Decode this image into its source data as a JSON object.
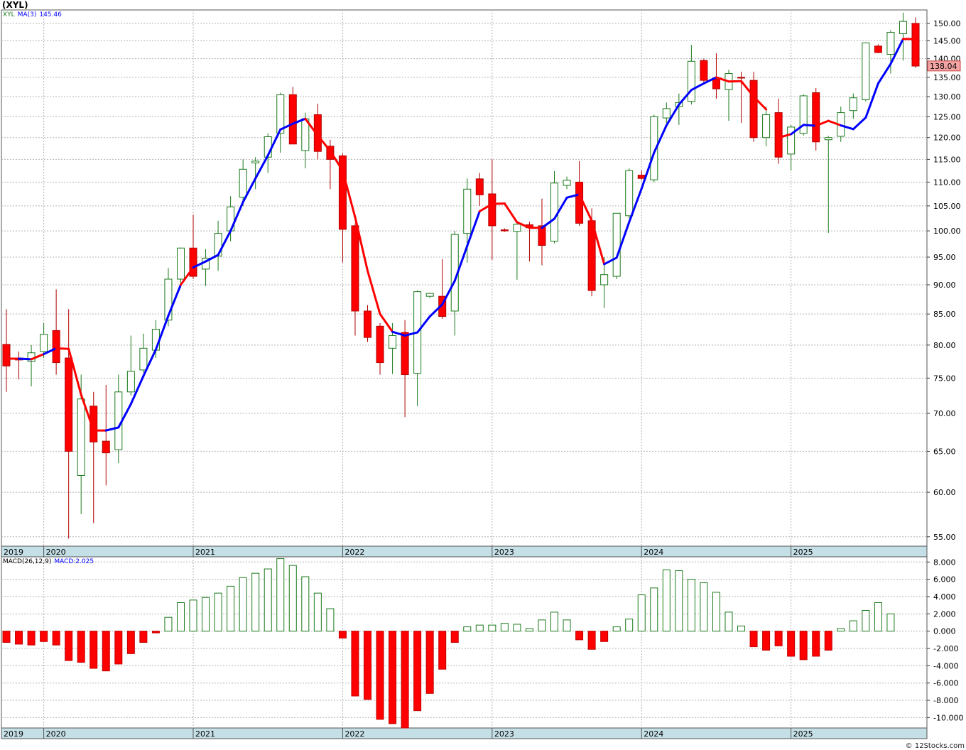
{
  "title": "(XYL)",
  "legend_main": {
    "sym": "XYL",
    "ma_label": "MA(3)",
    "ma_value": "145.46"
  },
  "legend_macd": {
    "label": "MACD(26,12,9)",
    "value": "MACD:2.025"
  },
  "last_price_label": "138.04",
  "credit": "© 12Stocks.com",
  "colors": {
    "up": "#1b7a1b",
    "down": "#ff0000",
    "ma": "#0000ff",
    "grid": "#b4b4b4",
    "date_band": "#c5dfe6"
  },
  "chart_data": {
    "type": "candlestick",
    "year_labels": [
      "2019",
      "2020",
      "2021",
      "2022",
      "2023",
      "2024",
      "2025"
    ],
    "price_ticks": [
      "150.00",
      "145.00",
      "140.00",
      "135.00",
      "130.00",
      "125.00",
      "120.00",
      "115.00",
      "110.00",
      "105.00",
      "100.00",
      "95.00",
      "90.00",
      "85.00",
      "80.00",
      "75.00",
      "70.00",
      "65.00",
      "60.00",
      "55.00"
    ],
    "macd_ticks": [
      "8.000",
      "6.000",
      "4.000",
      "2.000",
      "0.000",
      "-2.000",
      "-4.000",
      "-6.000",
      "-8.000",
      "-10.000"
    ],
    "candles": [
      {
        "o": 80.1,
        "h": 85.8,
        "l": 73.0,
        "c": 76.8
      },
      {
        "o": 78.0,
        "h": 79.0,
        "l": 74.8,
        "c": 77.7
      },
      {
        "o": 77.5,
        "h": 80.0,
        "l": 73.8,
        "c": 78.8
      },
      {
        "o": 79.0,
        "h": 83.5,
        "l": 78.0,
        "c": 81.7
      },
      {
        "o": 82.3,
        "h": 89.2,
        "l": 75.5,
        "c": 77.3
      },
      {
        "o": 78.0,
        "h": 85.8,
        "l": 54.8,
        "c": 65.0
      },
      {
        "o": 62.0,
        "h": 75.5,
        "l": 57.5,
        "c": 72.0
      },
      {
        "o": 71.0,
        "h": 73.0,
        "l": 56.5,
        "c": 66.2
      },
      {
        "o": 66.3,
        "h": 74.0,
        "l": 60.8,
        "c": 64.8
      },
      {
        "o": 65.2,
        "h": 75.5,
        "l": 63.5,
        "c": 73.0
      },
      {
        "o": 73.0,
        "h": 81.5,
        "l": 72.5,
        "c": 76.0
      },
      {
        "o": 76.2,
        "h": 81.8,
        "l": 75.8,
        "c": 79.5
      },
      {
        "o": 79.2,
        "h": 84.0,
        "l": 78.0,
        "c": 82.5
      },
      {
        "o": 84.0,
        "h": 93.0,
        "l": 83.0,
        "c": 91.0
      },
      {
        "o": 91.0,
        "h": 96.8,
        "l": 89.5,
        "c": 96.7
      },
      {
        "o": 96.7,
        "h": 103.2,
        "l": 91.0,
        "c": 91.5
      },
      {
        "o": 92.8,
        "h": 96.5,
        "l": 89.8,
        "c": 94.8
      },
      {
        "o": 95.2,
        "h": 102.0,
        "l": 92.5,
        "c": 99.5
      },
      {
        "o": 100.0,
        "h": 107.0,
        "l": 98.0,
        "c": 104.8
      },
      {
        "o": 106.8,
        "h": 115.0,
        "l": 105.0,
        "c": 112.8
      },
      {
        "o": 114.2,
        "h": 115.5,
        "l": 108.5,
        "c": 114.6
      },
      {
        "o": 115.5,
        "h": 121.0,
        "l": 112.0,
        "c": 120.2
      },
      {
        "o": 121.0,
        "h": 131.0,
        "l": 116.5,
        "c": 130.5
      },
      {
        "o": 130.5,
        "h": 132.5,
        "l": 119.0,
        "c": 118.5
      },
      {
        "o": 117.0,
        "h": 126.0,
        "l": 113.0,
        "c": 124.5
      },
      {
        "o": 125.5,
        "h": 128.2,
        "l": 115.0,
        "c": 116.8
      },
      {
        "o": 118.0,
        "h": 119.5,
        "l": 108.5,
        "c": 115.0
      },
      {
        "o": 115.8,
        "h": 116.3,
        "l": 94.0,
        "c": 100.3
      },
      {
        "o": 101.0,
        "h": 101.5,
        "l": 81.5,
        "c": 85.5
      },
      {
        "o": 85.5,
        "h": 86.5,
        "l": 80.5,
        "c": 81.2
      },
      {
        "o": 83.0,
        "h": 83.5,
        "l": 75.5,
        "c": 77.3
      },
      {
        "o": 79.5,
        "h": 83.5,
        "l": 75.6,
        "c": 81.5
      },
      {
        "o": 82.0,
        "h": 84.0,
        "l": 69.5,
        "c": 75.5
      },
      {
        "o": 75.7,
        "h": 89.0,
        "l": 71.0,
        "c": 88.8
      },
      {
        "o": 88.0,
        "h": 88.6,
        "l": 87.7,
        "c": 88.5
      },
      {
        "o": 88.0,
        "h": 94.6,
        "l": 84.2,
        "c": 84.6
      },
      {
        "o": 85.5,
        "h": 100.0,
        "l": 81.5,
        "c": 99.3
      },
      {
        "o": 99.5,
        "h": 110.8,
        "l": 94.0,
        "c": 108.5
      },
      {
        "o": 110.7,
        "h": 112.0,
        "l": 105.0,
        "c": 107.3
      },
      {
        "o": 107.5,
        "h": 115.0,
        "l": 94.5,
        "c": 101.0
      },
      {
        "o": 100.2,
        "h": 100.5,
        "l": 99.8,
        "c": 100.0
      },
      {
        "o": 99.9,
        "h": 101.5,
        "l": 90.9,
        "c": 101.3
      },
      {
        "o": 101.2,
        "h": 101.8,
        "l": 94.2,
        "c": 100.6
      },
      {
        "o": 101.0,
        "h": 106.5,
        "l": 93.5,
        "c": 97.2
      },
      {
        "o": 98.0,
        "h": 112.4,
        "l": 97.6,
        "c": 109.8
      },
      {
        "o": 109.3,
        "h": 111.2,
        "l": 108.5,
        "c": 110.4
      },
      {
        "o": 110.0,
        "h": 114.6,
        "l": 101.0,
        "c": 101.5
      },
      {
        "o": 102.0,
        "h": 104.5,
        "l": 88.0,
        "c": 89.0
      },
      {
        "o": 90.0,
        "h": 95.0,
        "l": 86.0,
        "c": 91.8
      },
      {
        "o": 91.5,
        "h": 103.5,
        "l": 91.0,
        "c": 103.5
      },
      {
        "o": 103.0,
        "h": 113.0,
        "l": 102.5,
        "c": 112.5
      },
      {
        "o": 111.5,
        "h": 112.5,
        "l": 110.5,
        "c": 110.8
      },
      {
        "o": 110.5,
        "h": 125.5,
        "l": 110.0,
        "c": 125.0
      },
      {
        "o": 124.7,
        "h": 128.5,
        "l": 123.5,
        "c": 127.0
      },
      {
        "o": 127.5,
        "h": 130.8,
        "l": 123.0,
        "c": 128.5
      },
      {
        "o": 128.8,
        "h": 143.8,
        "l": 128.0,
        "c": 139.3
      },
      {
        "o": 139.5,
        "h": 140.0,
        "l": 133.5,
        "c": 134.2
      },
      {
        "o": 134.5,
        "h": 141.5,
        "l": 129.5,
        "c": 132.0
      },
      {
        "o": 131.8,
        "h": 137.0,
        "l": 124.0,
        "c": 136.0
      },
      {
        "o": 135.0,
        "h": 136.5,
        "l": 123.5,
        "c": 134.8
      },
      {
        "o": 134.2,
        "h": 136.5,
        "l": 119.0,
        "c": 120.0
      },
      {
        "o": 120.0,
        "h": 127.5,
        "l": 118.0,
        "c": 125.5
      },
      {
        "o": 126.0,
        "h": 129.5,
        "l": 114.0,
        "c": 115.5
      },
      {
        "o": 116.2,
        "h": 123.0,
        "l": 112.5,
        "c": 122.5
      },
      {
        "o": 121.0,
        "h": 130.6,
        "l": 120.5,
        "c": 130.2
      },
      {
        "o": 131.0,
        "h": 132.2,
        "l": 117.0,
        "c": 119.0
      },
      {
        "o": 119.5,
        "h": 120.4,
        "l": 99.6,
        "c": 120.0
      },
      {
        "o": 120.3,
        "h": 127.5,
        "l": 119.0,
        "c": 126.0
      },
      {
        "o": 126.5,
        "h": 130.8,
        "l": 124.5,
        "c": 129.7
      },
      {
        "o": 129.2,
        "h": 144.5,
        "l": 128.8,
        "c": 144.4
      },
      {
        "o": 143.5,
        "h": 144.0,
        "l": 141.5,
        "c": 141.7
      },
      {
        "o": 141.2,
        "h": 148.0,
        "l": 136.0,
        "c": 147.4
      },
      {
        "o": 147.0,
        "h": 153.2,
        "l": 139.5,
        "c": 150.6
      },
      {
        "o": 150.0,
        "h": 151.8,
        "l": 137.5,
        "c": 138.0
      }
    ],
    "ma": [
      77.9,
      77.9,
      77.8,
      78.6,
      79.5,
      79.4,
      72.6,
      67.7,
      67.7,
      68.1,
      71.3,
      75.3,
      79.3,
      84.7,
      90.0,
      93.1,
      94.2,
      95.4,
      100.0,
      105.8,
      110.8,
      115.9,
      121.9,
      123.3,
      124.5,
      120.5,
      116.9,
      112.5,
      102.7,
      92.5,
      85.0,
      82.1,
      81.5,
      82.0,
      84.6,
      86.6,
      90.7,
      97.1,
      103.9,
      105.4,
      105.5,
      101.7,
      100.6,
      100.6,
      102.4,
      106.7,
      107.4,
      102.0,
      93.7,
      94.9,
      101.7,
      108.6,
      116.5,
      122.9,
      128.0,
      131.7,
      133.4,
      135.0,
      133.9,
      134.0,
      130.0,
      126.8,
      120.0,
      120.8,
      123.0,
      122.8,
      124.0,
      122.9,
      122.0,
      124.8,
      133.4,
      138.6,
      145.5,
      145.5
    ],
    "ma_color": [
      "#ff0000",
      "#0000ff",
      "#ff0000",
      "#0000ff",
      "#ff0000",
      "#ff0000",
      "#ff0000",
      "#ff0000",
      "#0000ff",
      "#0000ff",
      "#0000ff",
      "#0000ff",
      "#0000ff",
      "#0000ff",
      "#ff0000",
      "#0000ff",
      "#0000ff",
      "#0000ff",
      "#0000ff",
      "#0000ff",
      "#0000ff",
      "#0000ff",
      "#0000ff",
      "#0000ff",
      "#ff0000",
      "#ff0000",
      "#ff0000",
      "#ff0000",
      "#ff0000",
      "#ff0000",
      "#ff0000",
      "#0000ff",
      "#0000ff",
      "#0000ff",
      "#0000ff",
      "#0000ff",
      "#0000ff",
      "#0000ff",
      "#ff0000",
      "#ff0000",
      "#ff0000",
      "#ff0000",
      "#ff0000",
      "#0000ff",
      "#0000ff",
      "#0000ff",
      "#ff0000",
      "#ff0000",
      "#0000ff",
      "#0000ff",
      "#0000ff",
      "#0000ff",
      "#0000ff",
      "#0000ff",
      "#0000ff",
      "#0000ff",
      "#0000ff",
      "#ff0000",
      "#ff0000",
      "#ff0000",
      "#ff0000",
      "#ff0000",
      "#ff0000",
      "#0000ff",
      "#0000ff",
      "#ff0000",
      "#ff0000",
      "#0000ff",
      "#0000ff",
      "#0000ff",
      "#0000ff",
      "#0000ff",
      "#ff0000"
    ],
    "ma_gap_after": 61,
    "macd": [
      -1.3,
      -1.5,
      -1.6,
      -1.2,
      -1.6,
      -3.4,
      -3.6,
      -4.3,
      -4.6,
      -3.8,
      -2.6,
      -1.3,
      -0.2,
      1.6,
      3.3,
      3.6,
      3.9,
      4.4,
      5.2,
      6.2,
      6.7,
      7.2,
      8.4,
      7.6,
      6.3,
      4.4,
      2.6,
      -0.8,
      -7.5,
      -7.9,
      -10.2,
      -10.7,
      -11.2,
      -9.2,
      -7.2,
      -4.4,
      -1.3,
      0.5,
      0.7,
      0.7,
      0.9,
      0.8,
      0.3,
      1.3,
      2.2,
      1.3,
      -1.0,
      -2.1,
      -1.2,
      0.5,
      1.4,
      4.2,
      5.0,
      7.1,
      7.0,
      6.0,
      5.6,
      4.5,
      2.2,
      0.6,
      -1.8,
      -2.2,
      -1.7,
      -2.9,
      -3.3,
      -2.9,
      -2.2,
      0.3,
      1.2,
      2.4,
      3.3,
      2.0
    ],
    "ylim": [
      54,
      154
    ],
    "macd_ylim": [
      -11.2,
      8.6
    ]
  }
}
